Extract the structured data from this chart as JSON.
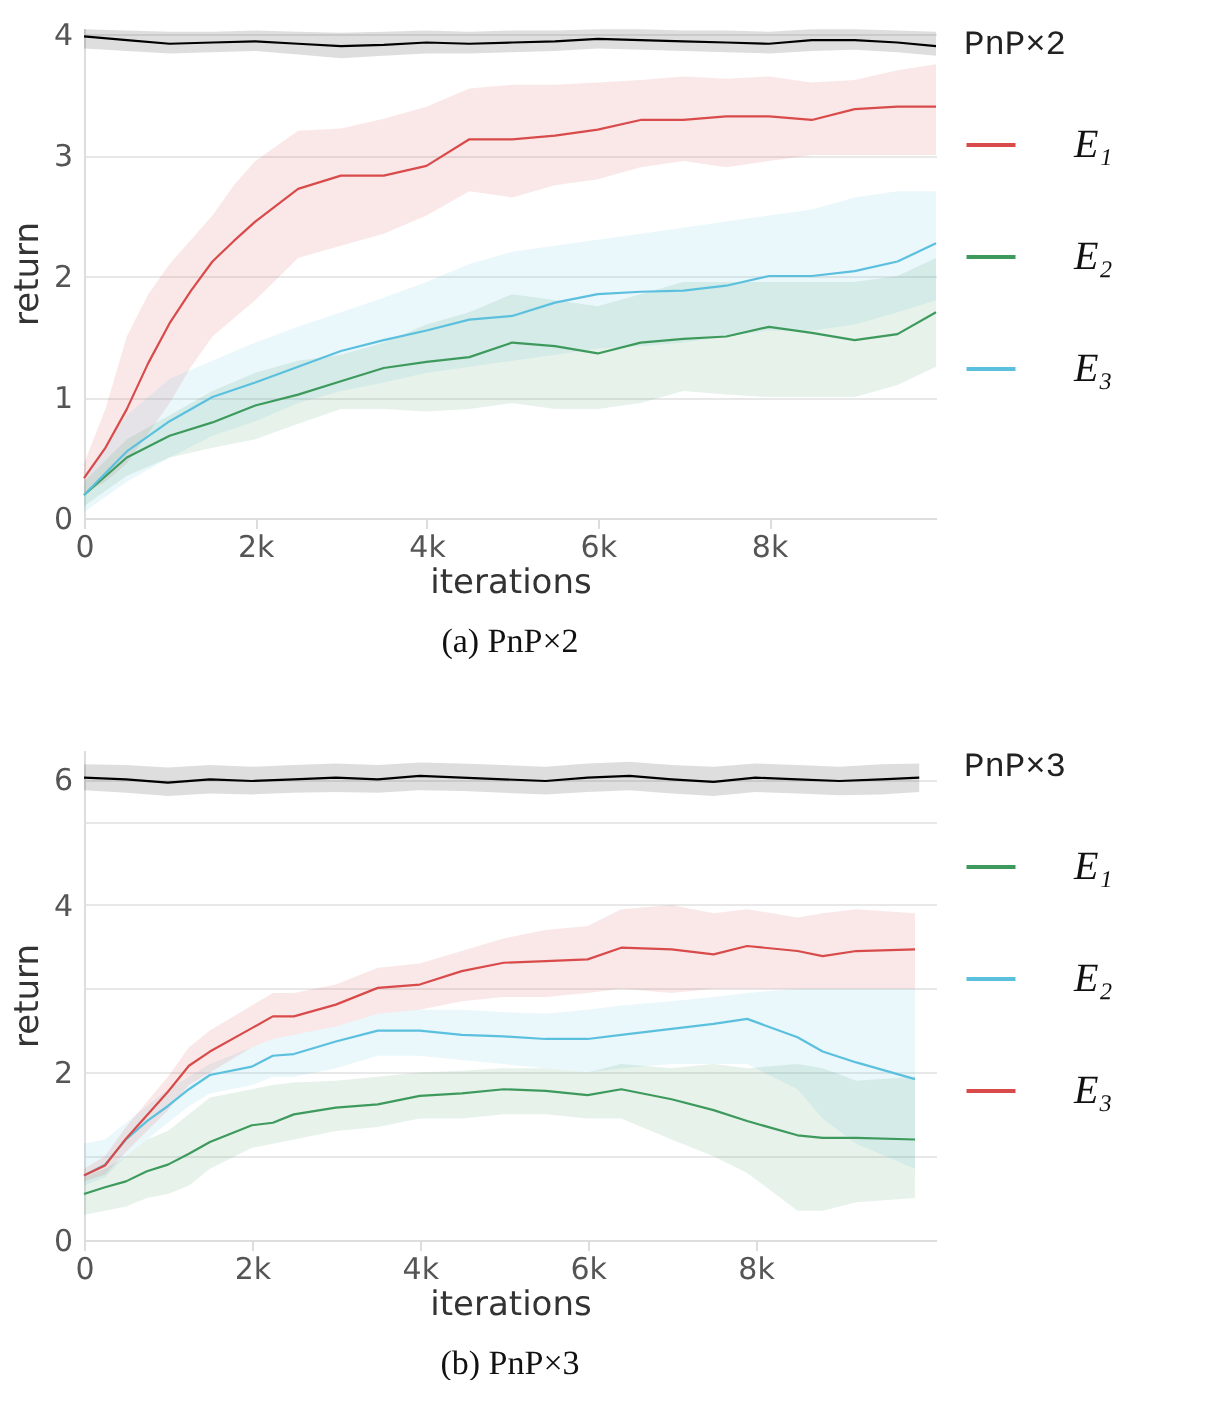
{
  "chart_data": [
    {
      "type": "line",
      "title": "(a) PnP×2",
      "xlabel": "iterations",
      "ylabel": "return",
      "legend_title": "PnP×2",
      "legend": "right",
      "grid": "y",
      "xlim": [
        0,
        9950
      ],
      "ylim": [
        0,
        4.05
      ],
      "xticks": [
        0,
        {
          "value": 2000,
          "label": "2k"
        },
        {
          "value": 4000,
          "label": "4k"
        },
        {
          "value": 6000,
          "label": "6k"
        },
        {
          "value": 8000,
          "label": "8k"
        }
      ],
      "yticks": [
        0,
        1,
        2,
        3,
        4
      ],
      "series": [
        {
          "color": "#000000",
          "x": [
            0,
            500,
            1000,
            1500,
            2000,
            2500,
            3000,
            3500,
            4000,
            4500,
            5000,
            5500,
            6000,
            6500,
            7000,
            7500,
            8000,
            8500,
            9000,
            9500,
            9950
          ],
          "values": [
            3.98,
            3.95,
            3.92,
            3.93,
            3.94,
            3.92,
            3.9,
            3.91,
            3.93,
            3.92,
            3.93,
            3.94,
            3.96,
            3.95,
            3.94,
            3.93,
            3.92,
            3.95,
            3.95,
            3.93,
            3.9
          ],
          "lower": [
            3.88,
            3.86,
            3.84,
            3.85,
            3.86,
            3.83,
            3.8,
            3.82,
            3.84,
            3.84,
            3.85,
            3.86,
            3.88,
            3.87,
            3.86,
            3.85,
            3.84,
            3.86,
            3.87,
            3.85,
            3.82
          ],
          "upper": [
            4.04,
            4.03,
            4.02,
            4.02,
            4.03,
            4.02,
            4.01,
            4.02,
            4.03,
            4.02,
            4.03,
            4.03,
            4.04,
            4.04,
            4.03,
            4.03,
            4.02,
            4.04,
            4.04,
            4.03,
            4.02
          ]
        },
        {
          "name": "E₁",
          "color": "#d94a4a",
          "x": [
            0,
            250,
            500,
            750,
            1000,
            1250,
            1500,
            1750,
            2000,
            2500,
            3000,
            3500,
            4000,
            4500,
            5000,
            5500,
            6000,
            6500,
            7000,
            7500,
            8000,
            8500,
            9000,
            9500,
            9950
          ],
          "values": [
            0.33,
            0.58,
            0.9,
            1.28,
            1.61,
            1.88,
            2.12,
            2.29,
            2.45,
            2.72,
            2.83,
            2.83,
            2.91,
            3.13,
            3.13,
            3.16,
            3.21,
            3.29,
            3.29,
            3.32,
            3.32,
            3.29,
            3.38,
            3.4,
            3.4
          ],
          "lower": [
            0.2,
            0.3,
            0.45,
            0.7,
            0.95,
            1.25,
            1.5,
            1.65,
            1.8,
            2.15,
            2.25,
            2.35,
            2.5,
            2.7,
            2.65,
            2.75,
            2.8,
            2.9,
            2.95,
            2.9,
            2.95,
            3.0,
            3.0,
            3.0,
            3.0
          ],
          "upper": [
            0.45,
            0.9,
            1.5,
            1.85,
            2.1,
            2.3,
            2.5,
            2.75,
            2.95,
            3.2,
            3.22,
            3.3,
            3.4,
            3.55,
            3.58,
            3.58,
            3.6,
            3.62,
            3.65,
            3.63,
            3.65,
            3.6,
            3.62,
            3.7,
            3.75
          ]
        },
        {
          "name": "E₂",
          "color": "#3d9a5c",
          "x": [
            0,
            500,
            1000,
            1500,
            2000,
            2500,
            3000,
            3500,
            4000,
            4500,
            5000,
            5500,
            6000,
            6500,
            7000,
            7500,
            8000,
            8500,
            9000,
            9500,
            9950
          ],
          "values": [
            0.19,
            0.5,
            0.68,
            0.79,
            0.93,
            1.02,
            1.13,
            1.24,
            1.29,
            1.33,
            1.45,
            1.42,
            1.36,
            1.45,
            1.48,
            1.5,
            1.58,
            1.53,
            1.47,
            1.52,
            1.7
          ],
          "lower": [
            0.1,
            0.35,
            0.5,
            0.58,
            0.65,
            0.78,
            0.9,
            0.9,
            0.88,
            0.9,
            0.95,
            0.9,
            0.9,
            0.95,
            1.05,
            1.02,
            1.0,
            1.0,
            1.0,
            1.1,
            1.25
          ],
          "upper": [
            0.3,
            0.65,
            0.85,
            1.05,
            1.2,
            1.3,
            1.35,
            1.45,
            1.6,
            1.7,
            1.85,
            1.8,
            1.75,
            1.85,
            1.95,
            1.95,
            1.95,
            1.95,
            1.95,
            2.0,
            2.15
          ]
        },
        {
          "name": "E₃",
          "color": "#5bc0de",
          "x": [
            0,
            500,
            1000,
            1500,
            2000,
            2500,
            3000,
            3500,
            4000,
            4500,
            5000,
            5500,
            6000,
            6500,
            7000,
            7500,
            8000,
            8500,
            9000,
            9500,
            9950
          ],
          "values": [
            0.19,
            0.55,
            0.8,
            1.0,
            1.12,
            1.25,
            1.38,
            1.47,
            1.55,
            1.64,
            1.67,
            1.78,
            1.85,
            1.87,
            1.88,
            1.92,
            2.0,
            2.0,
            2.04,
            2.12,
            2.27
          ],
          "lower": [
            0.05,
            0.3,
            0.5,
            0.68,
            0.8,
            0.95,
            1.05,
            1.12,
            1.2,
            1.25,
            1.3,
            1.35,
            1.4,
            1.42,
            1.45,
            1.5,
            1.55,
            1.55,
            1.6,
            1.7,
            1.8
          ],
          "upper": [
            0.35,
            0.85,
            1.15,
            1.3,
            1.45,
            1.58,
            1.7,
            1.82,
            1.95,
            2.1,
            2.2,
            2.25,
            2.3,
            2.35,
            2.4,
            2.45,
            2.5,
            2.55,
            2.65,
            2.7,
            2.7
          ]
        }
      ]
    },
    {
      "type": "line",
      "title": "(b) PnP×3",
      "xlabel": "iterations",
      "ylabel": "return",
      "legend_title": "PnP×3",
      "legend": "right",
      "grid": "y",
      "xlim": [
        0,
        10150
      ],
      "ylim": [
        0,
        5.85
      ],
      "xticks": [
        0,
        {
          "value": 2000,
          "label": "2k"
        },
        {
          "value": 4000,
          "label": "4k"
        },
        {
          "value": 6000,
          "label": "6k"
        },
        {
          "value": 8000,
          "label": "8k"
        }
      ],
      "yticks": [
        0,
        {
          "value": 1,
          "label": null
        },
        2,
        {
          "value": 3,
          "label": null
        },
        4,
        {
          "value": 5,
          "label": null
        },
        {
          "value": 5.5,
          "label": "6"
        }
      ],
      "series": [
        {
          "color": "#000000",
          "x": [
            0,
            500,
            1000,
            1500,
            2000,
            2500,
            3000,
            3500,
            4000,
            4500,
            5000,
            5500,
            6000,
            6500,
            7000,
            7500,
            8000,
            8500,
            9000,
            9500,
            9950
          ],
          "values": [
            5.52,
            5.5,
            5.46,
            5.5,
            5.48,
            5.5,
            5.52,
            5.5,
            5.54,
            5.52,
            5.5,
            5.48,
            5.52,
            5.54,
            5.5,
            5.47,
            5.52,
            5.5,
            5.48,
            5.5,
            5.52
          ],
          "lower": [
            5.37,
            5.34,
            5.3,
            5.33,
            5.32,
            5.34,
            5.35,
            5.34,
            5.37,
            5.36,
            5.34,
            5.32,
            5.35,
            5.37,
            5.33,
            5.3,
            5.35,
            5.33,
            5.31,
            5.32,
            5.35
          ],
          "upper": [
            5.68,
            5.67,
            5.64,
            5.67,
            5.65,
            5.67,
            5.69,
            5.67,
            5.7,
            5.69,
            5.67,
            5.65,
            5.69,
            5.71,
            5.67,
            5.65,
            5.69,
            5.67,
            5.65,
            5.68,
            5.69
          ]
        },
        {
          "name": "E₁",
          "color": "#3d9a5c",
          "x": [
            0,
            250,
            500,
            750,
            1000,
            1250,
            1500,
            2000,
            2250,
            2500,
            3000,
            3500,
            4000,
            4500,
            5000,
            5500,
            6000,
            6400,
            7000,
            7500,
            7900,
            8500,
            8800,
            9200,
            9900
          ],
          "values": [
            0.55,
            0.63,
            0.7,
            0.82,
            0.9,
            1.03,
            1.17,
            1.37,
            1.4,
            1.5,
            1.58,
            1.62,
            1.72,
            1.75,
            1.8,
            1.78,
            1.73,
            1.8,
            1.68,
            1.55,
            1.42,
            1.25,
            1.22,
            1.22,
            1.2
          ],
          "lower": [
            0.3,
            0.35,
            0.4,
            0.5,
            0.55,
            0.65,
            0.85,
            1.1,
            1.15,
            1.2,
            1.3,
            1.35,
            1.45,
            1.45,
            1.5,
            1.5,
            1.45,
            1.45,
            1.2,
            1.0,
            0.8,
            0.35,
            0.35,
            0.45,
            0.5
          ],
          "upper": [
            0.75,
            0.85,
            1.0,
            1.2,
            1.3,
            1.5,
            1.7,
            1.8,
            1.85,
            1.88,
            1.9,
            1.95,
            2.0,
            2.02,
            2.05,
            2.05,
            2.0,
            2.1,
            2.05,
            2.1,
            2.05,
            2.1,
            2.05,
            1.9,
            1.95
          ]
        },
        {
          "name": "E₂",
          "color": "#5bc0de",
          "x": [
            0,
            250,
            500,
            750,
            1000,
            1250,
            1500,
            2000,
            2250,
            2500,
            3000,
            3500,
            4000,
            4500,
            5000,
            5500,
            6000,
            6400,
            7000,
            7500,
            7900,
            8500,
            8800,
            9200,
            9900
          ],
          "values": [
            0.77,
            0.9,
            1.2,
            1.42,
            1.6,
            1.8,
            1.97,
            2.07,
            2.2,
            2.22,
            2.37,
            2.5,
            2.5,
            2.45,
            2.43,
            2.4,
            2.4,
            2.45,
            2.52,
            2.58,
            2.64,
            2.42,
            2.25,
            2.12,
            1.92
          ],
          "lower": [
            0.65,
            0.75,
            1.0,
            1.2,
            1.4,
            1.6,
            1.75,
            1.85,
            1.95,
            1.95,
            2.05,
            2.2,
            2.2,
            2.15,
            2.1,
            2.05,
            2.0,
            2.05,
            2.1,
            2.1,
            2.1,
            1.8,
            1.45,
            1.15,
            0.85
          ],
          "upper": [
            1.15,
            1.2,
            1.4,
            1.6,
            1.8,
            1.95,
            2.1,
            2.3,
            2.4,
            2.45,
            2.55,
            2.7,
            2.75,
            2.75,
            2.72,
            2.7,
            2.75,
            2.8,
            2.85,
            2.9,
            2.95,
            3.0,
            3.0,
            3.0,
            3.0
          ]
        },
        {
          "name": "E₃",
          "color": "#d94a4a",
          "x": [
            0,
            250,
            500,
            750,
            1000,
            1250,
            1500,
            2000,
            2250,
            2500,
            3000,
            3500,
            4000,
            4500,
            5000,
            5500,
            6000,
            6400,
            7000,
            7500,
            7900,
            8500,
            8800,
            9200,
            9900
          ],
          "values": [
            0.77,
            0.89,
            1.21,
            1.49,
            1.77,
            2.08,
            2.25,
            2.53,
            2.67,
            2.67,
            2.81,
            3.01,
            3.05,
            3.21,
            3.31,
            3.33,
            3.35,
            3.49,
            3.47,
            3.41,
            3.51,
            3.45,
            3.39,
            3.45,
            3.47
          ],
          "lower": [
            0.7,
            0.78,
            1.05,
            1.3,
            1.55,
            1.85,
            2.0,
            2.3,
            2.4,
            2.45,
            2.55,
            2.7,
            2.75,
            2.85,
            2.9,
            2.9,
            2.95,
            3.0,
            2.95,
            3.0,
            3.0,
            3.0,
            3.0,
            3.0,
            3.0
          ],
          "upper": [
            0.85,
            1.0,
            1.35,
            1.65,
            1.95,
            2.3,
            2.5,
            2.8,
            2.95,
            2.95,
            3.05,
            3.25,
            3.3,
            3.45,
            3.6,
            3.7,
            3.75,
            3.95,
            4.0,
            3.9,
            3.95,
            3.85,
            3.9,
            3.95,
            3.9
          ]
        }
      ]
    }
  ]
}
